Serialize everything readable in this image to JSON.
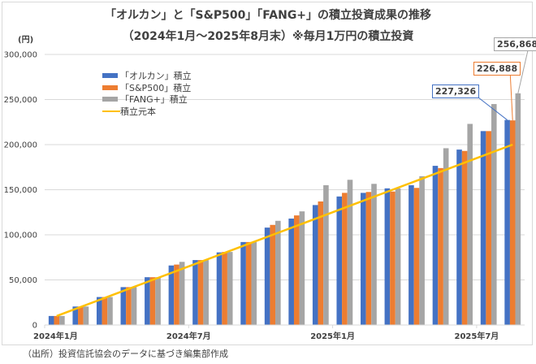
{
  "chart_data": {
    "type": "bar",
    "title": "「オルカン」と「S&P500」「FANG+」の積立投資成果の推移",
    "subtitle": "（2024年1月～2025年8月末）※毎月1万円の積立投資",
    "ylabel": "(円)",
    "xlabel": "",
    "ylim": [
      0,
      300000
    ],
    "yticks": [
      0,
      50000,
      100000,
      150000,
      200000,
      250000,
      300000
    ],
    "ytick_labels": [
      "0",
      "50,000",
      "100,000",
      "150,000",
      "200,000",
      "250,000",
      "300,000"
    ],
    "grid": true,
    "legend_position": "top-left",
    "categories": [
      "2024-01",
      "2024-02",
      "2024-03",
      "2024-04",
      "2024-05",
      "2024-06",
      "2024-07",
      "2024-08",
      "2024-09",
      "2024-10",
      "2024-11",
      "2024-12",
      "2025-01",
      "2025-02",
      "2025-03",
      "2025-04",
      "2025-05",
      "2025-06",
      "2025-07",
      "2025-08"
    ],
    "xtick_labels": [
      {
        "index": 0,
        "label": "2024年1月"
      },
      {
        "index": 6,
        "label": "2024年7月"
      },
      {
        "index": 12,
        "label": "2025年1月"
      },
      {
        "index": 18,
        "label": "2025年7月"
      }
    ],
    "series": [
      {
        "name": "「オルカン」積立",
        "kind": "bar",
        "color": "#4472c4",
        "values": [
          10000,
          20500,
          31000,
          42000,
          53000,
          66000,
          72000,
          80500,
          92000,
          108000,
          118000,
          133000,
          142500,
          146500,
          151500,
          155000,
          176500,
          194500,
          215000,
          227326
        ]
      },
      {
        "name": "「S&P500」積立",
        "kind": "bar",
        "color": "#ed7d31",
        "values": [
          10000,
          20500,
          31000,
          42000,
          53000,
          67000,
          72000,
          81000,
          92000,
          111000,
          121500,
          137000,
          146500,
          147500,
          148000,
          152000,
          174000,
          193000,
          215000,
          226888
        ]
      },
      {
        "name": "「FANG+」積立",
        "kind": "bar",
        "color": "#a5a5a5",
        "values": [
          10000,
          20500,
          31000,
          42000,
          53000,
          70000,
          72000,
          81000,
          92000,
          115500,
          126000,
          155000,
          161000,
          156500,
          151500,
          165000,
          196000,
          223000,
          245000,
          256868
        ]
      },
      {
        "name": "積立元本",
        "kind": "line",
        "color": "#ffc000",
        "values": [
          10000,
          20000,
          30000,
          40000,
          50000,
          60000,
          70000,
          80000,
          90000,
          100000,
          110000,
          120000,
          130000,
          140000,
          150000,
          160000,
          170000,
          180000,
          190000,
          200000
        ]
      }
    ],
    "annotations": [
      {
        "series": 0,
        "index": 19,
        "text": "227,326",
        "color": "#4472c4"
      },
      {
        "series": 1,
        "index": 19,
        "text": "226,888",
        "color": "#ed7d31"
      },
      {
        "series": 2,
        "index": 19,
        "text": "256,868",
        "color": "#a5a5a5"
      }
    ]
  },
  "source_note": "（出所）投資信託協会のデータに基づき編集部作成"
}
